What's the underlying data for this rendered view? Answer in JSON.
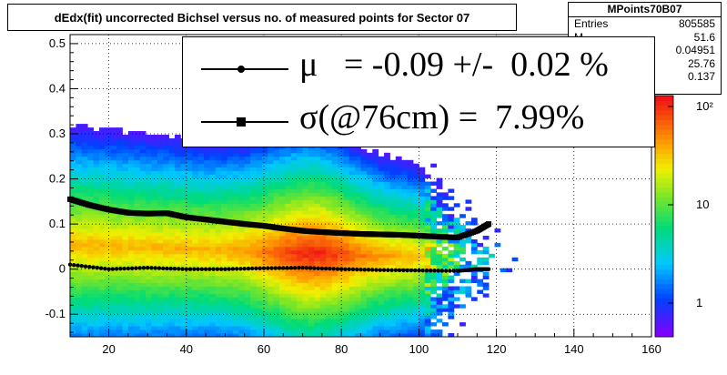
{
  "title": "dEdx(fit) uncorrected Bichsel versus no. of measured points for Sector 07",
  "stats": {
    "name": "MPoints70B07",
    "rows": [
      {
        "label": "Entries",
        "value": "805585"
      },
      {
        "label": "M",
        "value": "51.6"
      },
      {
        "label": "",
        "value": "0.04951"
      },
      {
        "label": "",
        "value": "25.76"
      },
      {
        "label": "",
        "value": "0.137"
      }
    ]
  },
  "legend": {
    "mu": "μ   = -0.09 +/-  0.02 %",
    "sigma": "σ(@76cm) =  7.99%"
  },
  "chart_data": {
    "type": "heatmap",
    "xlim": [
      10,
      160
    ],
    "ylim": [
      -0.15,
      0.52
    ],
    "x_ticks": [
      "20",
      "40",
      "60",
      "80",
      "100",
      "120",
      "140",
      "160"
    ],
    "y_ticks": [
      "-0.1",
      "0",
      "0.1",
      "0.2",
      "0.3",
      "0.4",
      "0.5"
    ],
    "z_scale": "log",
    "z_ticks": [
      "1",
      "10",
      "10²"
    ],
    "grid": true,
    "series": [
      {
        "marker": "circle",
        "x": [
          10,
          20,
          30,
          40,
          50,
          60,
          70,
          80,
          90,
          100,
          110,
          115,
          118
        ],
        "y": [
          0.01,
          0.0,
          0.003,
          0.0,
          0.0,
          0.002,
          0.003,
          0.0,
          -0.002,
          -0.003,
          -0.004,
          0.0,
          0.0
        ]
      },
      {
        "marker": "square",
        "x": [
          10,
          15,
          20,
          25,
          30,
          35,
          40,
          45,
          50,
          55,
          60,
          65,
          70,
          75,
          80,
          85,
          90,
          95,
          100,
          105,
          110,
          115,
          118
        ],
        "y": [
          0.155,
          0.142,
          0.132,
          0.125,
          0.123,
          0.124,
          0.115,
          0.11,
          0.105,
          0.1,
          0.096,
          0.09,
          0.085,
          0.082,
          0.08,
          0.078,
          0.077,
          0.076,
          0.074,
          0.072,
          0.07,
          0.085,
          0.1
        ]
      }
    ]
  }
}
